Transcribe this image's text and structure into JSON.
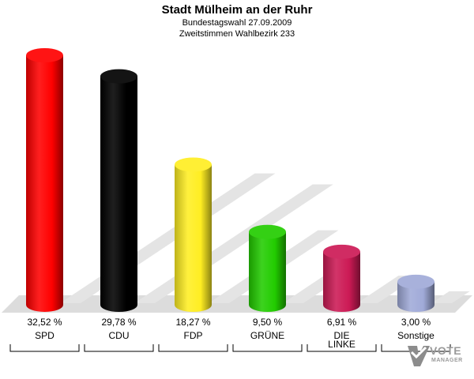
{
  "header": {
    "title": "Stadt Mülheim an der Ruhr",
    "subtitle1": "Bundestagswahl 27.09.2009",
    "subtitle2": "Zweitstimmen Wahlbezirk 233"
  },
  "logo": {
    "text_vote": "VOTE",
    "text_manager": "MANAGER"
  },
  "chart_data": {
    "type": "bar",
    "title": "Stadt Mülheim an der Ruhr",
    "subtitle": "Bundestagswahl 27.09.2009 — Zweitstimmen Wahlbezirk 233",
    "xlabel": "",
    "ylabel": "",
    "ylim": [
      0,
      35
    ],
    "grid": false,
    "categories": [
      "SPD",
      "CDU",
      "FDP",
      "GRÜNE",
      "DIE LINKE",
      "Sonstige"
    ],
    "category_lines": [
      [
        "SPD"
      ],
      [
        "CDU"
      ],
      [
        "FDP"
      ],
      [
        "GRÜNE"
      ],
      [
        "DIE",
        "LINKE"
      ],
      [
        "Sonstige"
      ]
    ],
    "values": [
      32.52,
      29.78,
      18.27,
      9.5,
      6.91,
      3.0
    ],
    "value_labels": [
      "32,52 %",
      "29,78 %",
      "18,27 %",
      "9,50 %",
      "6,91 %",
      "3,00 %"
    ],
    "colors": [
      "#ff0000",
      "#000000",
      "#ffee22",
      "#22cc00",
      "#cc1a55",
      "#a0aad8"
    ]
  }
}
